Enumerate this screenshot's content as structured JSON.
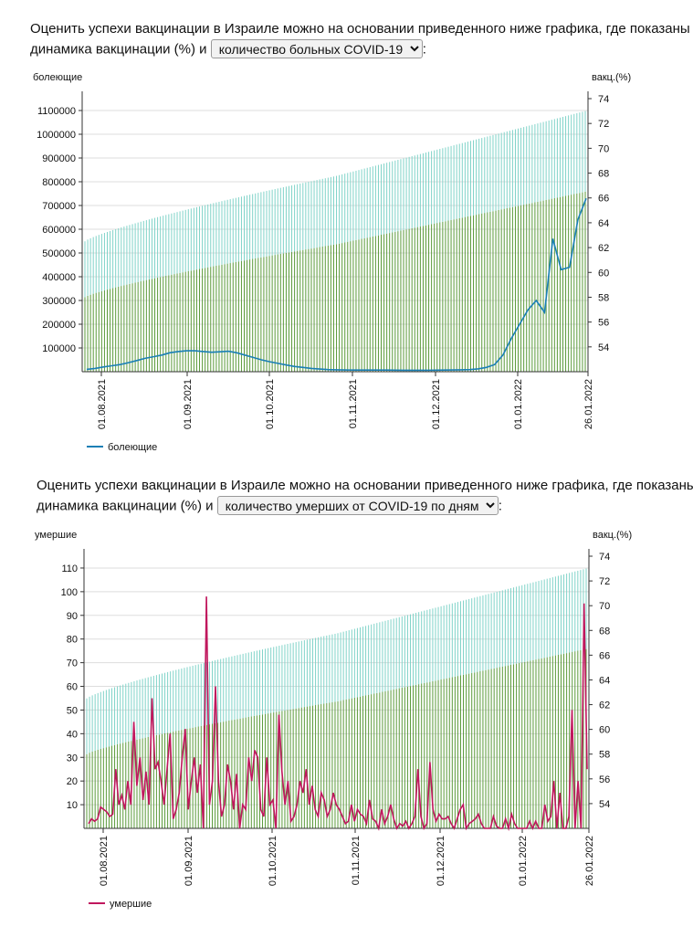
{
  "intro1": {
    "text": "Оценить успехи вакцинации в Израиле можно на основании приведенного ниже графика, где показаны динамика вакцинации (%) и",
    "select_value": "количество больных COVID-19",
    "suffix": ":"
  },
  "intro2": {
    "text": "Оценить успехи вакцинации в Израиле можно на основании приведенного ниже графика, где показаны динамика вакцинации (%) и",
    "select_value": "количество умерших от COVID-19 по дням",
    "suffix": ":"
  },
  "colors": {
    "full_vax": "#7fd3c8",
    "first_dose": "#5a9a3a",
    "sick_line": "#1a7fb5",
    "deaths_line": "#c0175d",
    "grid": "#dddddd"
  },
  "chart_data": [
    {
      "type": "line",
      "ylabel_left": "болеющие",
      "ylabel_right": "вакц.(%)",
      "left_ticks": [
        "100000",
        "200000",
        "300000",
        "400000",
        "500000",
        "600000",
        "700000",
        "800000",
        "900000",
        "1000000",
        "1100000"
      ],
      "right_ticks": [
        "54",
        "56",
        "58",
        "60",
        "62",
        "64",
        "66",
        "68",
        "70",
        "72",
        "74"
      ],
      "x_ticks": [
        "01.08.2021",
        "01.09.2021",
        "01.10.2021",
        "01.11.2021",
        "01.12.2021",
        "01.01.2022",
        "26.01.2022"
      ],
      "ylim_left": [
        0,
        1150000
      ],
      "ylim_right": [
        52,
        74
      ],
      "legend": "болеющие",
      "series_name": "болеющие",
      "vax_bars": {
        "start_upper": 62.5,
        "end_upper": 73.0,
        "start_lower": 58.0,
        "end_lower": 66.5
      },
      "sick_values": [
        10000,
        14000,
        20000,
        25000,
        30000,
        38000,
        47000,
        56000,
        63000,
        70000,
        80000,
        85000,
        88000,
        88000,
        85000,
        82000,
        84000,
        86000,
        80000,
        70000,
        60000,
        50000,
        42000,
        35000,
        28000,
        22000,
        18000,
        14000,
        11000,
        9000,
        8000,
        7500,
        7000,
        7000,
        7000,
        7000,
        6800,
        6500,
        6300,
        6100,
        6000,
        6200,
        6500,
        7000,
        7500,
        8000,
        9000,
        12000,
        18000,
        30000,
        70000,
        140000,
        200000,
        260000,
        300000,
        250000,
        560000,
        430000,
        440000,
        640000,
        730000
      ]
    },
    {
      "type": "line",
      "ylabel_left": "умершие",
      "ylabel_right": "вакц.(%)",
      "left_ticks": [
        "10",
        "20",
        "30",
        "40",
        "50",
        "60",
        "70",
        "80",
        "90",
        "100",
        "110"
      ],
      "right_ticks": [
        "54",
        "56",
        "58",
        "60",
        "62",
        "64",
        "66",
        "68",
        "70",
        "72",
        "74"
      ],
      "x_ticks": [
        "01.08.2021",
        "01.09.2021",
        "01.10.2021",
        "01.11.2021",
        "01.12.2021",
        "01.01.2022",
        "26.01.2022"
      ],
      "ylim_left": [
        0,
        115
      ],
      "ylim_right": [
        52,
        74
      ],
      "legend": "умершие",
      "series_name": "умершие",
      "vax_bars": {
        "start_upper": 62.5,
        "end_upper": 73.0,
        "start_lower": 58.0,
        "end_lower": 66.5
      },
      "deaths_values": [
        2,
        4,
        3,
        4,
        9,
        8,
        7,
        5,
        6,
        25,
        10,
        14,
        8,
        20,
        10,
        45,
        18,
        30,
        12,
        24,
        10,
        55,
        25,
        28,
        20,
        10,
        25,
        40,
        4,
        8,
        15,
        30,
        42,
        8,
        20,
        30,
        15,
        27,
        0,
        98,
        10,
        20,
        60,
        20,
        5,
        10,
        27,
        20,
        8,
        23,
        0,
        10,
        8,
        30,
        20,
        33,
        30,
        8,
        5,
        30,
        10,
        12,
        0,
        48,
        24,
        10,
        20,
        3,
        5,
        10,
        20,
        15,
        25,
        10,
        18,
        8,
        5,
        15,
        12,
        5,
        8,
        15,
        10,
        8,
        5,
        2,
        3,
        10,
        3,
        8,
        6,
        5,
        2,
        12,
        4,
        3,
        0,
        8,
        2,
        5,
        10,
        4,
        0,
        2,
        1,
        3,
        0,
        2,
        5,
        25,
        5,
        0,
        2,
        28,
        8,
        3,
        6,
        4,
        4,
        5,
        2,
        0,
        4,
        8,
        10,
        0,
        2,
        3,
        4,
        6,
        2,
        0,
        0,
        0,
        5,
        1,
        0,
        0,
        4,
        0,
        6,
        2,
        0,
        0,
        0,
        0,
        3,
        0,
        3,
        0,
        0,
        10,
        3,
        5,
        20,
        0,
        15,
        0,
        0,
        5,
        50,
        0,
        20,
        0,
        95,
        25
      ]
    }
  ]
}
